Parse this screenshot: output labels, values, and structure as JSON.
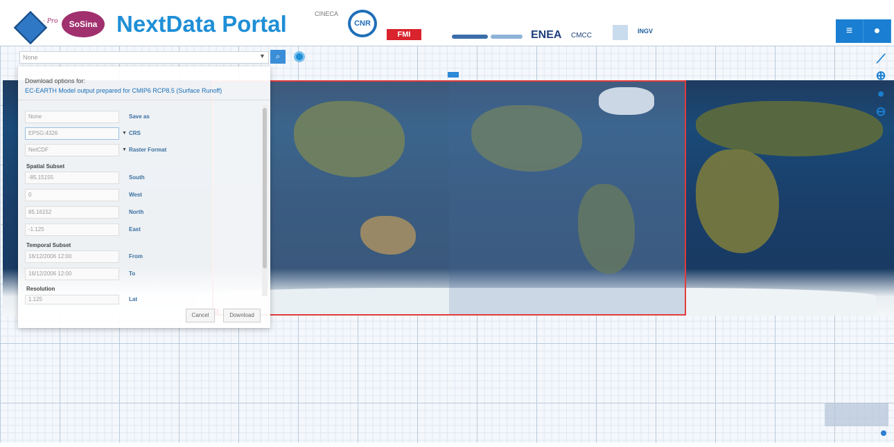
{
  "header": {
    "title": "NextData Portal",
    "sosina_logo": "SoSina",
    "partner_logos": [
      "CINECA",
      "CNR",
      "FMI",
      "ENEA",
      "CMCC",
      "INGV"
    ],
    "menu_icon": "hamburger-icon",
    "user_icon": "user-icon"
  },
  "search": {
    "placeholder": "None"
  },
  "map_controls": [
    "measure-icon",
    "zoom-in-icon",
    "globe-icon",
    "zoom-out-icon"
  ],
  "download_panel": {
    "heading": "Download options for:",
    "dataset": "EC-EARTH Model output prepared for CMIP6 RCP8.5 (Surface Runoff)",
    "fields": {
      "save_as": {
        "value": "None",
        "label": "Save as"
      },
      "crs": {
        "value": "EPSG:4326",
        "label": "CRS"
      },
      "raster_format": {
        "value": "NetCDF",
        "label": "Raster Format"
      }
    },
    "spatial_subset": {
      "title": "Spatial Subset",
      "south": {
        "value": "-85.15155",
        "label": "South"
      },
      "west": {
        "value": "0",
        "label": "West"
      },
      "north": {
        "value": "85.16152",
        "label": "North"
      },
      "east": {
        "value": "-1.125",
        "label": "East"
      }
    },
    "temporal_subset": {
      "title": "Temporal Subset",
      "from": {
        "value": "16/12/2006 12:00",
        "label": "From"
      },
      "to": {
        "value": "16/12/2006 12:00",
        "label": "To"
      }
    },
    "resolution": {
      "title": "Resolution",
      "lat": {
        "value": "1.125",
        "label": "Lat"
      }
    },
    "cancel_label": "Cancel",
    "download_label": "Download"
  }
}
